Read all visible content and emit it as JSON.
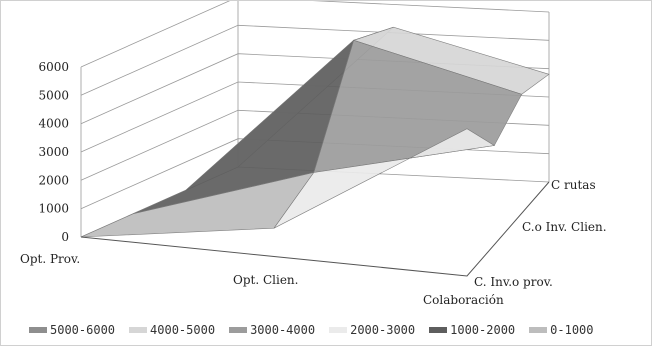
{
  "chart_data": {
    "type": "surface",
    "z_ticks": [
      "6000",
      "5000",
      "4000",
      "3000",
      "2000",
      "1000",
      "0"
    ],
    "zlim": [
      0,
      6000
    ],
    "x_categories": [
      "Opt. Prov.",
      "Opt. Clien."
    ],
    "y_categories": [
      "Colaboración",
      "C. Inv.o prov.",
      "C.o Inv. Clien.",
      "C rutas"
    ],
    "surface_values": [
      [
        0,
        0,
        0,
        0
      ],
      [
        1000,
        2000,
        5700,
        5200
      ],
      [
        5200,
        3500,
        4200,
        3800
      ]
    ],
    "bands": [
      {
        "label": "5000-6000",
        "color": "#8e8e8e"
      },
      {
        "label": "4000-5000",
        "color": "#d6d6d6"
      },
      {
        "label": "3000-4000",
        "color": "#9c9c9c"
      },
      {
        "label": "2000-3000",
        "color": "#ebebeb"
      },
      {
        "label": "1000-2000",
        "color": "#5e5e5e"
      },
      {
        "label": "0-1000",
        "color": "#bdbdbd"
      }
    ],
    "legend_position": "bottom",
    "grid": true
  }
}
